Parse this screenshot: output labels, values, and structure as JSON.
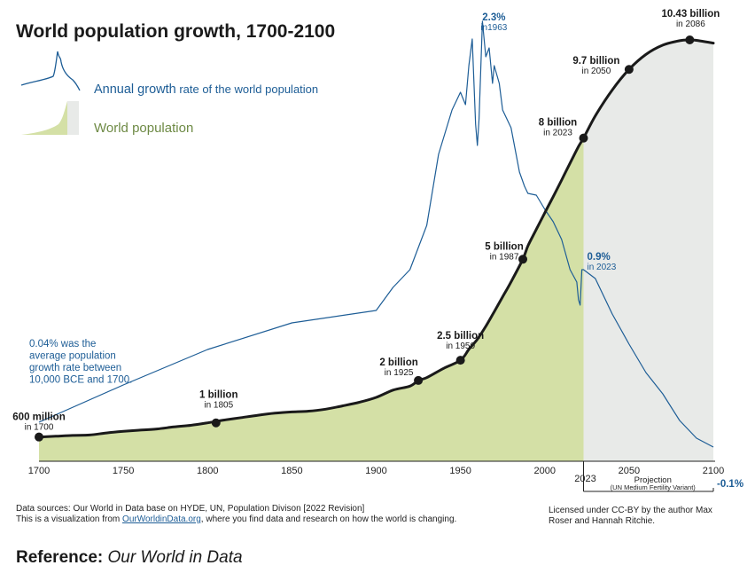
{
  "chart_data": {
    "type": "area",
    "title": "World population growth, 1700-2100",
    "legend": {
      "growth_label": "Annual growth",
      "growth_suffix": " rate of the world population",
      "population_label": "World population"
    },
    "xlim": [
      1700,
      2100
    ],
    "x_ticks": [
      "1700",
      "1750",
      "1800",
      "1850",
      "1900",
      "1950",
      "2000",
      "2050",
      "2100"
    ],
    "projection_start_label": "2023",
    "projection_label": "Projection",
    "projection_sublabel": "(UN Medium Fertility Variant)",
    "population_billions": {
      "x": [
        1700,
        1710,
        1720,
        1730,
        1740,
        1750,
        1760,
        1770,
        1780,
        1790,
        1800,
        1810,
        1820,
        1830,
        1840,
        1850,
        1860,
        1870,
        1880,
        1890,
        1900,
        1910,
        1920,
        1925,
        1930,
        1940,
        1950,
        1955,
        1960,
        1965,
        1970,
        1975,
        1980,
        1987,
        1990,
        1995,
        2000,
        2005,
        2010,
        2015,
        2020,
        2023,
        2030,
        2040,
        2050,
        2060,
        2070,
        2080,
        2086,
        2090,
        2100
      ],
      "values": [
        0.6,
        0.62,
        0.64,
        0.65,
        0.7,
        0.74,
        0.77,
        0.8,
        0.85,
        0.89,
        0.95,
        1.02,
        1.08,
        1.14,
        1.19,
        1.22,
        1.24,
        1.29,
        1.37,
        1.46,
        1.58,
        1.76,
        1.86,
        2.0,
        2.07,
        2.3,
        2.5,
        2.77,
        3.02,
        3.34,
        3.7,
        4.07,
        4.44,
        5.0,
        5.33,
        5.74,
        6.15,
        6.55,
        6.96,
        7.38,
        7.79,
        8.0,
        8.55,
        9.19,
        9.7,
        10.07,
        10.3,
        10.41,
        10.43,
        10.42,
        10.35
      ]
    },
    "growth_rate_percent": {
      "x": [
        1700,
        1750,
        1800,
        1850,
        1900,
        1910,
        1920,
        1930,
        1937,
        1945,
        1950,
        1953,
        1955,
        1957,
        1959,
        1960,
        1961,
        1963,
        1965,
        1967,
        1969,
        1970,
        1973,
        1975,
        1980,
        1985,
        1988,
        1990,
        1995,
        2000,
        2005,
        2010,
        2015,
        2019,
        2020,
        2021,
        2022,
        2023,
        2030,
        2040,
        2050,
        2060,
        2070,
        2080,
        2090,
        2100
      ],
      "values": [
        0.04,
        0.25,
        0.45,
        0.6,
        0.67,
        0.8,
        0.9,
        1.15,
        1.55,
        1.8,
        1.9,
        1.83,
        2.05,
        2.2,
        1.72,
        1.6,
        1.75,
        2.3,
        2.1,
        2.15,
        1.95,
        2.05,
        1.95,
        1.8,
        1.7,
        1.45,
        1.37,
        1.33,
        1.32,
        1.24,
        1.17,
        1.07,
        0.9,
        0.83,
        0.73,
        0.7,
        0.9,
        0.9,
        0.85,
        0.65,
        0.48,
        0.32,
        0.2,
        0.05,
        -0.05,
        -0.1
      ]
    },
    "annotations": {
      "pop_1700": {
        "value": "600 million",
        "sub": "in 1700"
      },
      "pop_1805": {
        "value": "1 billion",
        "sub": "in 1805"
      },
      "pop_1925": {
        "value": "2 billion",
        "sub": "in 1925"
      },
      "pop_1950": {
        "value": "2.5 billion",
        "sub": "in 1950"
      },
      "pop_1987": {
        "value": "5 billion",
        "sub": "in 1987"
      },
      "pop_2023": {
        "value": "8 billion",
        "sub": "in 2023"
      },
      "pop_2050": {
        "value": "9.7 billion",
        "sub": "in 2050"
      },
      "pop_2086": {
        "value": "10.43 billion",
        "sub": "in 2086"
      },
      "rate_1963": {
        "value": "2.3%",
        "sub": "in1963"
      },
      "rate_2023": {
        "value": "0.9%",
        "sub": "in 2023"
      },
      "rate_2100": {
        "value": "-0.1%"
      },
      "rate_note": [
        "0.04% was the",
        "average population",
        "growth rate between",
        "10,000 BCE and 1700."
      ]
    },
    "colors": {
      "population_fill": "#d4e0a6",
      "projection_fill": "#e8eae8",
      "population_line": "#1a1a1a",
      "growth_line": "#1d5d96"
    }
  },
  "footer": {
    "sources": "Data sources: Our World in Data base on HYDE, UN, Population Divison [2022 Revision]",
    "visual_prefix": "This is a visualization from ",
    "visual_link": "OurWorldinData.org",
    "visual_suffix": ", where you find data and research on how the world is changing.",
    "license_line1": "Licensed under CC-BY by the author Max",
    "license_line2": "Roser and Hannah Ritchie.",
    "reference_label": "Reference:",
    "reference_value": " Our World in Data"
  }
}
